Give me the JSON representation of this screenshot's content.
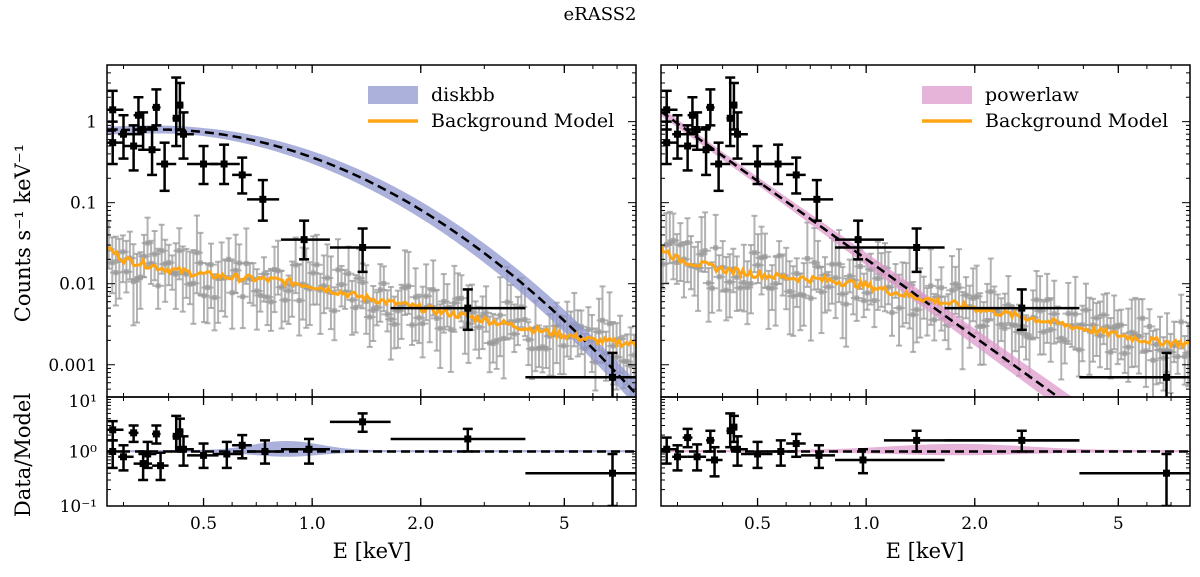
{
  "chart_data": {
    "type": "scatter",
    "title": "eRASS2",
    "xlabel": "E [keV]",
    "ylabel_top": "Counts s⁻¹ keV⁻¹",
    "ylabel_bottom": "Data/Model",
    "x_scale": "log",
    "xlim": [
      0.27,
      7.9
    ],
    "ylim_top": [
      0.0004,
      5
    ],
    "ylim_bottom": [
      0.1,
      10
    ],
    "x_ticks": [
      0.5,
      1.0,
      2.0,
      5
    ],
    "x_tick_labels": [
      "0.5",
      "1.0",
      "2.0",
      "5"
    ],
    "y_ticks_top": [
      0.001,
      0.01,
      0.1,
      1
    ],
    "y_tick_labels_top": [
      "0.001",
      "0.01",
      "0.1",
      "1"
    ],
    "y_ticks_bottom": [
      0.1,
      1,
      10
    ],
    "y_tick_labels_bottom": [
      "10⁻¹",
      "10⁰",
      "10¹"
    ],
    "colors": {
      "diskbb": "#8f97cf",
      "powerlaw": "#dd9acc",
      "background": "#ffa514",
      "data": "#000000",
      "bkg_data": "#9a9a9a"
    },
    "legend_position": "upper-right",
    "panels": [
      {
        "name": "diskbb",
        "legend": [
          "diskbb",
          "Background Model"
        ],
        "model": {
          "type": "diskbb",
          "norm": 0.8,
          "peak": 0.37,
          "width": 0.52
        },
        "data": [
          {
            "x": 0.28,
            "y": 1.4,
            "xerr": [
              0.27,
              0.3
            ],
            "yerr": [
              0.8,
              2.4
            ]
          },
          {
            "x": 0.28,
            "y": 0.55,
            "xerr": [
              0.27,
              0.3
            ],
            "yerr": [
              0.3,
              1.0
            ]
          },
          {
            "x": 0.3,
            "y": 0.7,
            "xerr": [
              0.29,
              0.32
            ],
            "yerr": [
              0.35,
              1.2
            ]
          },
          {
            "x": 0.32,
            "y": 0.5,
            "xerr": [
              0.3,
              0.34
            ],
            "yerr": [
              0.25,
              0.9
            ]
          },
          {
            "x": 0.33,
            "y": 1.2,
            "xerr": [
              0.32,
              0.34
            ],
            "yerr": [
              0.7,
              2.0
            ]
          },
          {
            "x": 0.34,
            "y": 0.8,
            "xerr": [
              0.32,
              0.37
            ],
            "yerr": [
              0.45,
              1.3
            ]
          },
          {
            "x": 0.36,
            "y": 0.45,
            "xerr": [
              0.34,
              0.38
            ],
            "yerr": [
              0.22,
              0.85
            ]
          },
          {
            "x": 0.37,
            "y": 1.5,
            "xerr": [
              0.36,
              0.38
            ],
            "yerr": [
              0.9,
              2.5
            ]
          },
          {
            "x": 0.39,
            "y": 0.3,
            "xerr": [
              0.37,
              0.42
            ],
            "yerr": [
              0.14,
              0.55
            ]
          },
          {
            "x": 0.42,
            "y": 1.1,
            "xerr": [
              0.41,
              0.43
            ],
            "yerr": [
              0.5,
              3.5
            ]
          },
          {
            "x": 0.43,
            "y": 1.6,
            "xerr": [
              0.42,
              0.44
            ],
            "yerr": [
              0.8,
              3.0
            ]
          },
          {
            "x": 0.44,
            "y": 0.7,
            "xerr": [
              0.42,
              0.47
            ],
            "yerr": [
              0.35,
              1.3
            ]
          },
          {
            "x": 0.5,
            "y": 0.3,
            "xerr": [
              0.45,
              0.55
            ],
            "yerr": [
              0.17,
              0.5
            ]
          },
          {
            "x": 0.57,
            "y": 0.3,
            "xerr": [
              0.52,
              0.63
            ],
            "yerr": [
              0.17,
              0.52
            ]
          },
          {
            "x": 0.64,
            "y": 0.22,
            "xerr": [
              0.6,
              0.68
            ],
            "yerr": [
              0.13,
              0.36
            ]
          },
          {
            "x": 0.73,
            "y": 0.11,
            "xerr": [
              0.66,
              0.81
            ],
            "yerr": [
              0.06,
              0.19
            ]
          },
          {
            "x": 0.95,
            "y": 0.035,
            "xerr": [
              0.82,
              1.12
            ],
            "yerr": [
              0.02,
              0.06
            ]
          },
          {
            "x": 1.38,
            "y": 0.028,
            "xerr": [
              1.12,
              1.65
            ],
            "yerr": [
              0.014,
              0.048
            ]
          },
          {
            "x": 2.7,
            "y": 0.005,
            "xerr": [
              1.65,
              3.9
            ],
            "yerr": [
              0.0027,
              0.0085
            ]
          },
          {
            "x": 6.8,
            "y": 0.0007,
            "xerr": [
              3.9,
              7.9
            ],
            "yerr": [
              0.0001,
              0.0014
            ]
          }
        ],
        "ratio": [
          {
            "x": 0.28,
            "y": 2.5,
            "xerr": [
              0.27,
              0.3
            ],
            "yerr": [
              1.6,
              3.6
            ]
          },
          {
            "x": 0.28,
            "y": 1.0,
            "xerr": [
              0.27,
              0.3
            ],
            "yerr": [
              0.5,
              1.6
            ]
          },
          {
            "x": 0.3,
            "y": 0.8,
            "xerr": [
              0.29,
              0.32
            ],
            "yerr": [
              0.45,
              1.3
            ]
          },
          {
            "x": 0.32,
            "y": 2.2,
            "xerr": [
              0.31,
              0.33
            ],
            "yerr": [
              1.5,
              3.0
            ]
          },
          {
            "x": 0.34,
            "y": 0.6,
            "xerr": [
              0.32,
              0.36
            ],
            "yerr": [
              0.3,
              1.0
            ]
          },
          {
            "x": 0.35,
            "y": 0.9,
            "xerr": [
              0.33,
              0.37
            ],
            "yerr": [
              0.5,
              1.5
            ]
          },
          {
            "x": 0.37,
            "y": 2.1,
            "xerr": [
              0.36,
              0.38
            ],
            "yerr": [
              1.4,
              3.0
            ]
          },
          {
            "x": 0.38,
            "y": 0.55,
            "xerr": [
              0.36,
              0.4
            ],
            "yerr": [
              0.3,
              0.95
            ]
          },
          {
            "x": 0.42,
            "y": 1.9,
            "xerr": [
              0.41,
              0.43
            ],
            "yerr": [
              1.0,
              4.5
            ]
          },
          {
            "x": 0.43,
            "y": 2.3,
            "xerr": [
              0.42,
              0.44
            ],
            "yerr": [
              1.2,
              4.0
            ]
          },
          {
            "x": 0.44,
            "y": 1.1,
            "xerr": [
              0.42,
              0.47
            ],
            "yerr": [
              0.55,
              1.9
            ]
          },
          {
            "x": 0.5,
            "y": 0.85,
            "xerr": [
              0.45,
              0.55
            ],
            "yerr": [
              0.5,
              1.4
            ]
          },
          {
            "x": 0.58,
            "y": 0.9,
            "xerr": [
              0.53,
              0.64
            ],
            "yerr": [
              0.5,
              1.5
            ]
          },
          {
            "x": 0.64,
            "y": 1.3,
            "xerr": [
              0.6,
              0.68
            ],
            "yerr": [
              0.75,
              2.0
            ]
          },
          {
            "x": 0.74,
            "y": 1.0,
            "xerr": [
              0.66,
              0.82
            ],
            "yerr": [
              0.6,
              1.6
            ]
          },
          {
            "x": 0.98,
            "y": 1.1,
            "xerr": [
              0.82,
              1.12
            ],
            "yerr": [
              0.6,
              1.7
            ]
          },
          {
            "x": 1.38,
            "y": 3.5,
            "xerr": [
              1.12,
              1.65
            ],
            "yerr": [
              2.3,
              5.0
            ]
          },
          {
            "x": 2.7,
            "y": 1.7,
            "xerr": [
              1.65,
              3.9
            ],
            "yerr": [
              1.0,
              2.6
            ]
          },
          {
            "x": 6.8,
            "y": 0.4,
            "xerr": [
              3.9,
              7.9
            ],
            "yerr": [
              0.1,
              0.9
            ]
          }
        ]
      },
      {
        "name": "powerlaw",
        "legend": [
          "powerlaw",
          "Background Model"
        ],
        "model": {
          "type": "powerlaw",
          "norm": 0.95,
          "e0": 0.3
        },
        "data": [
          {
            "x": 0.28,
            "y": 1.4,
            "xerr": [
              0.27,
              0.3
            ],
            "yerr": [
              0.8,
              2.4
            ]
          },
          {
            "x": 0.28,
            "y": 0.55,
            "xerr": [
              0.27,
              0.3
            ],
            "yerr": [
              0.3,
              1.0
            ]
          },
          {
            "x": 0.3,
            "y": 0.7,
            "xerr": [
              0.29,
              0.32
            ],
            "yerr": [
              0.35,
              1.2
            ]
          },
          {
            "x": 0.32,
            "y": 0.5,
            "xerr": [
              0.3,
              0.34
            ],
            "yerr": [
              0.25,
              0.9
            ]
          },
          {
            "x": 0.33,
            "y": 1.2,
            "xerr": [
              0.32,
              0.34
            ],
            "yerr": [
              0.7,
              2.0
            ]
          },
          {
            "x": 0.34,
            "y": 0.8,
            "xerr": [
              0.32,
              0.37
            ],
            "yerr": [
              0.45,
              1.3
            ]
          },
          {
            "x": 0.36,
            "y": 0.45,
            "xerr": [
              0.34,
              0.38
            ],
            "yerr": [
              0.22,
              0.85
            ]
          },
          {
            "x": 0.37,
            "y": 1.5,
            "xerr": [
              0.36,
              0.38
            ],
            "yerr": [
              0.9,
              2.5
            ]
          },
          {
            "x": 0.39,
            "y": 0.3,
            "xerr": [
              0.37,
              0.42
            ],
            "yerr": [
              0.14,
              0.55
            ]
          },
          {
            "x": 0.42,
            "y": 1.1,
            "xerr": [
              0.41,
              0.43
            ],
            "yerr": [
              0.5,
              3.5
            ]
          },
          {
            "x": 0.43,
            "y": 1.6,
            "xerr": [
              0.42,
              0.44
            ],
            "yerr": [
              0.8,
              3.0
            ]
          },
          {
            "x": 0.44,
            "y": 0.7,
            "xerr": [
              0.42,
              0.47
            ],
            "yerr": [
              0.35,
              1.3
            ]
          },
          {
            "x": 0.5,
            "y": 0.3,
            "xerr": [
              0.45,
              0.55
            ],
            "yerr": [
              0.17,
              0.5
            ]
          },
          {
            "x": 0.57,
            "y": 0.3,
            "xerr": [
              0.52,
              0.63
            ],
            "yerr": [
              0.17,
              0.52
            ]
          },
          {
            "x": 0.64,
            "y": 0.22,
            "xerr": [
              0.6,
              0.68
            ],
            "yerr": [
              0.13,
              0.36
            ]
          },
          {
            "x": 0.73,
            "y": 0.11,
            "xerr": [
              0.66,
              0.81
            ],
            "yerr": [
              0.06,
              0.19
            ]
          },
          {
            "x": 0.95,
            "y": 0.035,
            "xerr": [
              0.82,
              1.12
            ],
            "yerr": [
              0.02,
              0.06
            ]
          },
          {
            "x": 1.38,
            "y": 0.028,
            "xerr": [
              0.82,
              1.65
            ],
            "yerr": [
              0.014,
              0.048
            ]
          },
          {
            "x": 2.7,
            "y": 0.005,
            "xerr": [
              1.65,
              3.9
            ],
            "yerr": [
              0.0027,
              0.0085
            ]
          },
          {
            "x": 6.8,
            "y": 0.0007,
            "xerr": [
              3.9,
              7.9
            ],
            "yerr": [
              0.0001,
              0.0014
            ]
          }
        ],
        "ratio": [
          {
            "x": 0.28,
            "y": 1.1,
            "xerr": [
              0.27,
              0.3
            ],
            "yerr": [
              0.6,
              1.8
            ]
          },
          {
            "x": 0.3,
            "y": 0.8,
            "xerr": [
              0.29,
              0.32
            ],
            "yerr": [
              0.45,
              1.3
            ]
          },
          {
            "x": 0.32,
            "y": 1.8,
            "xerr": [
              0.31,
              0.33
            ],
            "yerr": [
              1.2,
              2.6
            ]
          },
          {
            "x": 0.34,
            "y": 0.8,
            "xerr": [
              0.32,
              0.36
            ],
            "yerr": [
              0.45,
              1.35
            ]
          },
          {
            "x": 0.37,
            "y": 1.6,
            "xerr": [
              0.36,
              0.38
            ],
            "yerr": [
              1.0,
              2.4
            ]
          },
          {
            "x": 0.38,
            "y": 0.7,
            "xerr": [
              0.36,
              0.4
            ],
            "yerr": [
              0.35,
              1.2
            ]
          },
          {
            "x": 0.42,
            "y": 2.4,
            "xerr": [
              0.41,
              0.43
            ],
            "yerr": [
              1.2,
              5.0
            ]
          },
          {
            "x": 0.43,
            "y": 2.8,
            "xerr": [
              0.42,
              0.44
            ],
            "yerr": [
              1.5,
              4.5
            ]
          },
          {
            "x": 0.44,
            "y": 1.1,
            "xerr": [
              0.42,
              0.47
            ],
            "yerr": [
              0.55,
              1.9
            ]
          },
          {
            "x": 0.5,
            "y": 0.9,
            "xerr": [
              0.45,
              0.55
            ],
            "yerr": [
              0.5,
              1.5
            ]
          },
          {
            "x": 0.58,
            "y": 1.0,
            "xerr": [
              0.53,
              0.64
            ],
            "yerr": [
              0.55,
              1.6
            ]
          },
          {
            "x": 0.64,
            "y": 1.4,
            "xerr": [
              0.6,
              0.68
            ],
            "yerr": [
              0.8,
              2.1
            ]
          },
          {
            "x": 0.74,
            "y": 0.85,
            "xerr": [
              0.66,
              0.82
            ],
            "yerr": [
              0.5,
              1.3
            ]
          },
          {
            "x": 0.98,
            "y": 0.7,
            "xerr": [
              0.82,
              1.65
            ],
            "yerr": [
              0.4,
              1.1
            ]
          },
          {
            "x": 1.38,
            "y": 1.6,
            "xerr": [
              1.12,
              3.9
            ],
            "yerr": [
              1.0,
              2.4
            ]
          },
          {
            "x": 2.7,
            "y": 1.6,
            "xerr": [
              1.65,
              3.9
            ],
            "yerr": [
              1.0,
              2.4
            ]
          },
          {
            "x": 6.8,
            "y": 0.4,
            "xerr": [
              3.9,
              7.9
            ],
            "yerr": [
              0.1,
              0.9
            ]
          }
        ]
      }
    ],
    "background_model": {
      "x": [
        0.27,
        0.3,
        0.4,
        0.5,
        0.6,
        0.8,
        1.0,
        1.3,
        1.6,
        2.0,
        3.0,
        4.0,
        6.0,
        7.9
      ],
      "y": [
        0.028,
        0.02,
        0.015,
        0.013,
        0.012,
        0.011,
        0.0095,
        0.0072,
        0.006,
        0.005,
        0.0036,
        0.0028,
        0.002,
        0.0018
      ]
    }
  }
}
